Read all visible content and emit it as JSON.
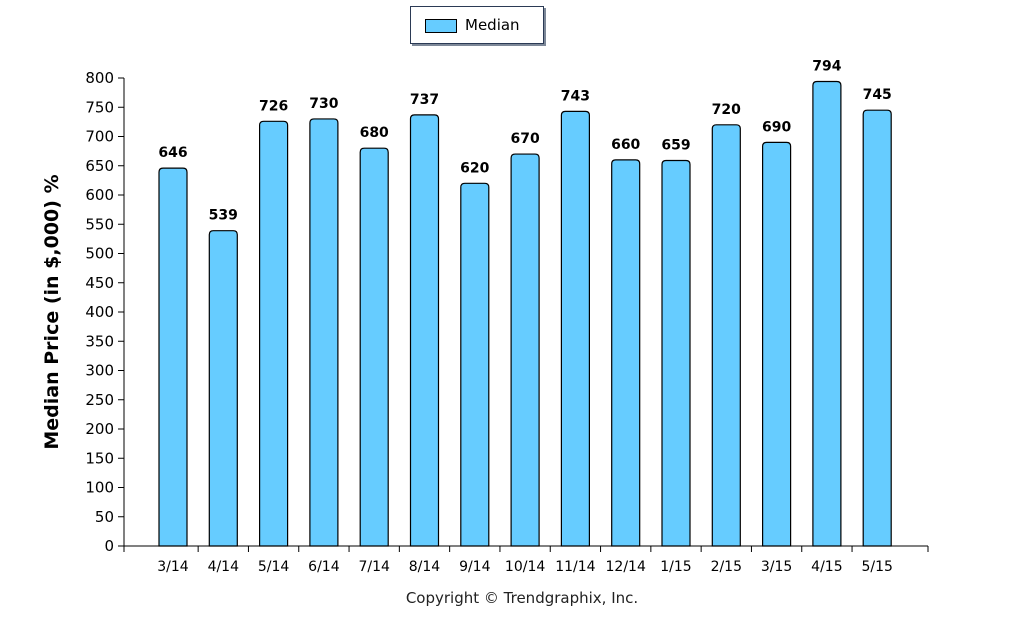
{
  "chart_data": {
    "type": "bar",
    "categories": [
      "3/14",
      "4/14",
      "5/14",
      "6/14",
      "7/14",
      "8/14",
      "9/14",
      "10/14",
      "11/14",
      "12/14",
      "1/15",
      "2/15",
      "3/15",
      "4/15",
      "5/15"
    ],
    "series": [
      {
        "name": "Median",
        "values": [
          646,
          539,
          726,
          730,
          680,
          737,
          620,
          670,
          743,
          660,
          659,
          720,
          690,
          794,
          745
        ]
      }
    ],
    "ylabel": "Median Price (in $,000) %",
    "xlabel": "",
    "ylim": [
      0,
      800
    ],
    "yticks": [
      0,
      50,
      100,
      150,
      200,
      250,
      300,
      350,
      400,
      450,
      500,
      550,
      600,
      650,
      700,
      750,
      800
    ],
    "legend_position": "top-center",
    "grid": false,
    "bar_color": "#66ccff"
  },
  "footer": {
    "copyright": "Copyright © Trendgraphix, Inc."
  }
}
